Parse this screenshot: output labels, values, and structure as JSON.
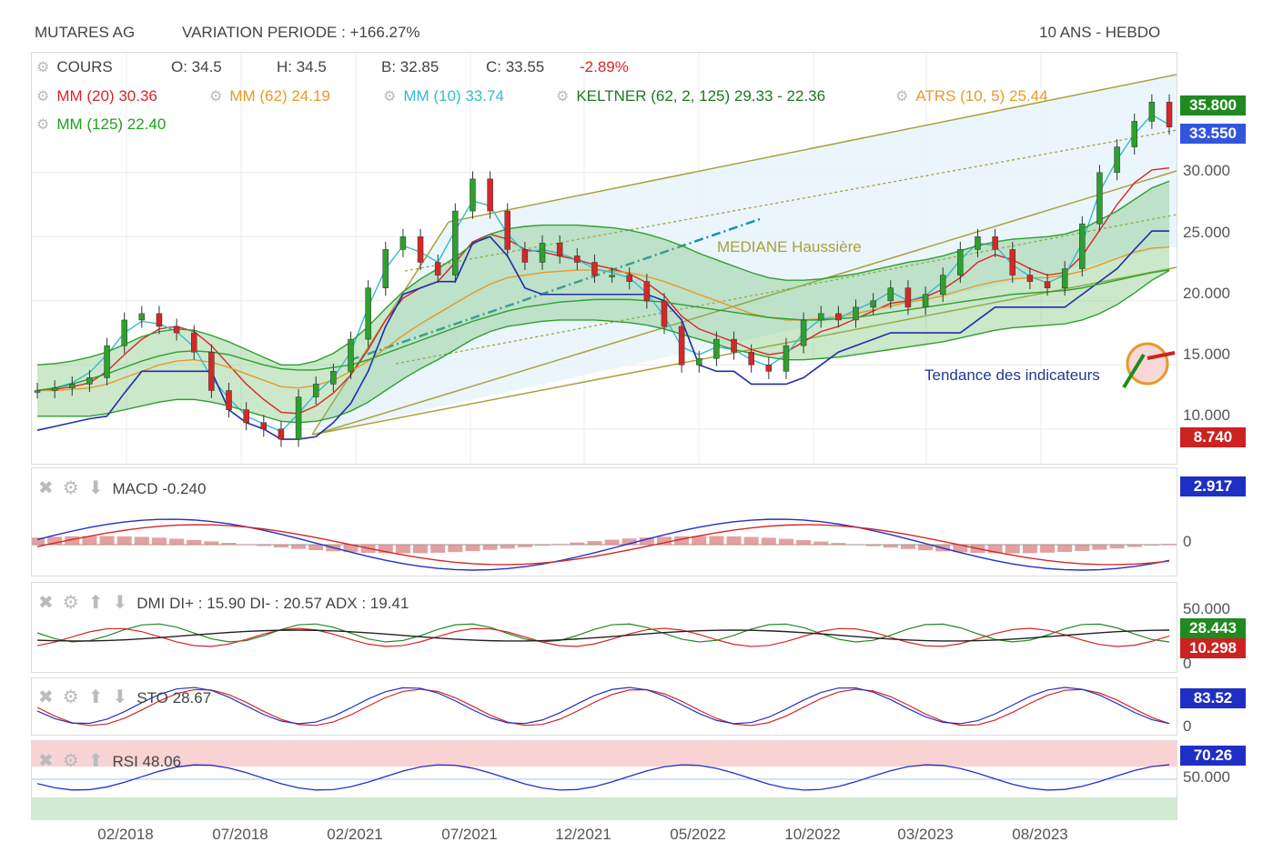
{
  "header": {
    "company": "MUTARES AG",
    "variation": "VARIATION PERIODE : +166.27%",
    "period": "10 ANS - HEBDO"
  },
  "legend": {
    "cours": "COURS",
    "open": "O: 34.5",
    "high": "H: 34.5",
    "low": "B: 32.85",
    "close": "C: 33.55",
    "change": "-2.89%",
    "mm20": "MM (20)  30.36",
    "mm62": "MM (62)  24.19",
    "mm10": "MM (10)  33.74",
    "keltner": "KELTNER (62, 2, 125)  29.33 - 22.36",
    "atrs": "ATRS (10, 5)  25.44",
    "mm125": "MM (125)  22.40"
  },
  "annotations": {
    "median": "MEDIANE Haussière",
    "trend": "Tendance des indicateurs"
  },
  "price_tags": {
    "high": "35.800",
    "last": "33.550",
    "low": "8.740"
  },
  "indicators": {
    "macd": {
      "label": "MACD",
      "value": "-0.240",
      "tag": "2.917",
      "zero": "0"
    },
    "dmi": {
      "label": "DMI",
      "value": "DI+ : 15.90 DI- : 20.57 ADX : 19.41",
      "tags": [
        "28.443",
        "10.298"
      ],
      "top": "50.000",
      "zero": "0"
    },
    "sto": {
      "label": "STO",
      "value": "28.67",
      "tag": "83.52",
      "zero": "0"
    },
    "rsi": {
      "label": "RSI",
      "value": "48.06",
      "tag": "70.26",
      "mid": "50.000"
    }
  },
  "colors": {
    "candle_up": "#2ea02e",
    "candle_down": "#d62728",
    "mm20": "#d62728",
    "mm62": "#e69a28",
    "mm10": "#33bcd0",
    "keltner": "#2ca02c",
    "atrs": "#1f2fa8",
    "mm125": "#2ca02c",
    "channel": "#a9a13a",
    "tag_green": "#1f8a1f",
    "tag_blue": "#3355dd",
    "tag_red": "#cc2222",
    "tag_navy": "#1f2fc4"
  },
  "chart_data": {
    "type": "line",
    "title": "MUTARES AG",
    "xlabel": "",
    "ylabel": "",
    "x_ticks": [
      "02/2018",
      "07/2018",
      "02/2021",
      "07/2021",
      "12/2021",
      "05/2022",
      "10/2022",
      "03/2023",
      "08/2023"
    ],
    "y_ticks": [
      10,
      15,
      20,
      25,
      30
    ],
    "ylim": [
      8,
      35.8
    ],
    "grid": true,
    "series": [
      {
        "name": "COURS",
        "values": [
          13,
          13.2,
          13.5,
          14,
          16.5,
          18.5,
          19,
          18,
          17.5,
          16,
          13,
          11.5,
          10.5,
          10,
          9.2,
          12.5,
          13.5,
          14.5,
          17,
          21,
          24,
          25,
          23,
          22,
          27,
          29.5,
          27,
          24,
          23,
          24.5,
          23.5,
          23,
          22,
          22,
          21.5,
          20,
          18,
          15,
          15.5,
          17,
          16,
          15,
          14.5,
          16.5,
          18.5,
          19,
          18.5,
          19.5,
          20,
          21,
          19.5,
          20.5,
          22,
          24,
          25,
          24,
          22,
          21.5,
          21,
          22.5,
          26,
          30,
          32,
          34,
          35.5,
          33.55
        ]
      },
      {
        "name": "MM (20)",
        "values": [
          13,
          13.1,
          13.3,
          13.6,
          14.5,
          15.8,
          17,
          17.8,
          18,
          17.6,
          16.5,
          15,
          13.5,
          12.3,
          11.3,
          11.2,
          11.8,
          12.8,
          14.2,
          16.2,
          18.5,
          20.2,
          21,
          21.5,
          23,
          24.6,
          25.2,
          24.8,
          24,
          23.8,
          23.5,
          23.2,
          22.8,
          22.5,
          22.1,
          21.4,
          20.4,
          18.8,
          17.8,
          17.3,
          16.8,
          16.2,
          15.8,
          16,
          16.8,
          17.6,
          18,
          18.6,
          19.2,
          19.8,
          20,
          20.3,
          20.9,
          21.8,
          23,
          23.6,
          23.2,
          22.5,
          22,
          22.2,
          23.5,
          25.5,
          27.5,
          29.2,
          30.2,
          30.36
        ]
      },
      {
        "name": "MM (62)",
        "values": [
          13,
          13,
          13.1,
          13.2,
          13.5,
          14,
          14.5,
          15,
          15.3,
          15.4,
          15.2,
          14.8,
          14.3,
          13.8,
          13.3,
          13.2,
          13.4,
          13.8,
          14.5,
          15.3,
          16.3,
          17.3,
          18.2,
          19,
          19.8,
          20.6,
          21.3,
          21.8,
          22,
          22.2,
          22.3,
          22.4,
          22.4,
          22.3,
          22.2,
          21.9,
          21.5,
          21,
          20.5,
          20,
          19.5,
          19,
          18.7,
          18.5,
          18.5,
          18.6,
          18.8,
          19,
          19.3,
          19.6,
          19.9,
          20.1,
          20.4,
          20.8,
          21.2,
          21.5,
          21.7,
          21.8,
          21.8,
          22,
          22.3,
          22.8,
          23.3,
          23.8,
          24.1,
          24.19
        ]
      },
      {
        "name": "MM (10)",
        "values": [
          13,
          13.2,
          13.6,
          14.4,
          15.8,
          17.5,
          18.4,
          18.2,
          17.6,
          16.4,
          14,
          12.4,
          11,
          10.4,
          9.8,
          11.2,
          12.8,
          14,
          16,
          19.5,
          22.5,
          24.3,
          23.8,
          23,
          25.5,
          27.8,
          27.4,
          25.2,
          23.8,
          24,
          23.7,
          23.2,
          22.5,
          22.2,
          21.8,
          20.6,
          18.8,
          16.4,
          15.8,
          16.4,
          16.2,
          15.4,
          14.9,
          15.8,
          17.5,
          18.6,
          18.6,
          19.3,
          19.9,
          20.7,
          20,
          20.4,
          21.5,
          23.2,
          24.5,
          24.3,
          22.8,
          21.9,
          21.4,
          22,
          24.5,
          28.5,
          31,
          33,
          34.5,
          33.74
        ]
      },
      {
        "name": "KELTNER",
        "values": [
          15,
          15.1,
          15.3,
          15.6,
          16,
          16.6,
          17.2,
          17.6,
          17.8,
          17.7,
          17.3,
          16.8,
          16.2,
          15.6,
          15,
          15,
          15.3,
          15.9,
          16.8,
          18,
          19.4,
          20.7,
          21.7,
          22.5,
          23.4,
          24.4,
          25.2,
          25.6,
          25.8,
          25.9,
          25.9,
          25.9,
          25.8,
          25.7,
          25.5,
          25.2,
          24.8,
          24.3,
          23.7,
          23.2,
          22.7,
          22.2,
          21.8,
          21.6,
          21.6,
          21.7,
          21.9,
          22.1,
          22.4,
          22.7,
          23,
          23.2,
          23.5,
          23.9,
          24.3,
          24.6,
          24.8,
          24.9,
          25,
          25.2,
          25.6,
          26.3,
          27,
          27.9,
          28.8,
          29.33
        ]
      },
      {
        "name": "KELTNER bas",
        "values": [
          11,
          11,
          11,
          11,
          11.2,
          11.5,
          11.8,
          12.1,
          12.3,
          12.3,
          12.1,
          11.8,
          11.4,
          11,
          10.6,
          10.5,
          10.6,
          10.9,
          11.4,
          12.1,
          13,
          13.9,
          14.7,
          15.4,
          16.2,
          17,
          17.6,
          18,
          18.2,
          18.4,
          18.5,
          18.5,
          18.5,
          18.4,
          18.3,
          18.1,
          17.8,
          17.4,
          17,
          16.6,
          16.2,
          15.9,
          15.6,
          15.4,
          15.4,
          15.5,
          15.6,
          15.8,
          16,
          16.2,
          16.4,
          16.6,
          16.8,
          17.1,
          17.4,
          17.7,
          17.9,
          18,
          18.1,
          18.2,
          18.5,
          19,
          19.7,
          20.6,
          21.6,
          22.36
        ]
      },
      {
        "name": "ATRS",
        "values": [
          9.9,
          10.2,
          10.5,
          10.8,
          11,
          12.8,
          14.5,
          14.5,
          14.5,
          14.5,
          14.5,
          11.5,
          10.5,
          10,
          9.2,
          9.2,
          9.4,
          10.5,
          12,
          14.5,
          18,
          20.5,
          21,
          21.5,
          21.5,
          24.5,
          25,
          23.5,
          21,
          20.5,
          20.5,
          20.5,
          20.5,
          20.5,
          20.5,
          20.5,
          20,
          18.5,
          15,
          14.5,
          14.5,
          13.5,
          13.5,
          13.5,
          14,
          15,
          16,
          16.5,
          17,
          17.5,
          17.5,
          17.5,
          17.5,
          17.5,
          18.5,
          19.5,
          19.5,
          19.5,
          19.5,
          19.5,
          20.5,
          21.5,
          22.5,
          24,
          25.44,
          25.44
        ]
      },
      {
        "name": "MM (125)",
        "values": [
          13,
          13.2,
          13.5,
          13.9,
          14.3,
          14.8,
          15.3,
          15.7,
          16,
          16.1,
          16,
          15.8,
          15.4,
          15,
          14.7,
          14.6,
          14.6,
          14.8,
          15,
          15.4,
          15.9,
          16.4,
          16.9,
          17.4,
          17.9,
          18.4,
          18.8,
          19.2,
          19.5,
          19.7,
          19.9,
          20,
          20.1,
          20.1,
          20.1,
          20,
          19.9,
          19.7,
          19.5,
          19.3,
          19.1,
          18.9,
          18.7,
          18.6,
          18.5,
          18.5,
          18.6,
          18.7,
          18.9,
          19.1,
          19.3,
          19.5,
          19.7,
          19.9,
          20.1,
          20.3,
          20.5,
          20.6,
          20.7,
          20.8,
          21,
          21.3,
          21.6,
          21.9,
          22.2,
          22.4
        ]
      }
    ]
  }
}
